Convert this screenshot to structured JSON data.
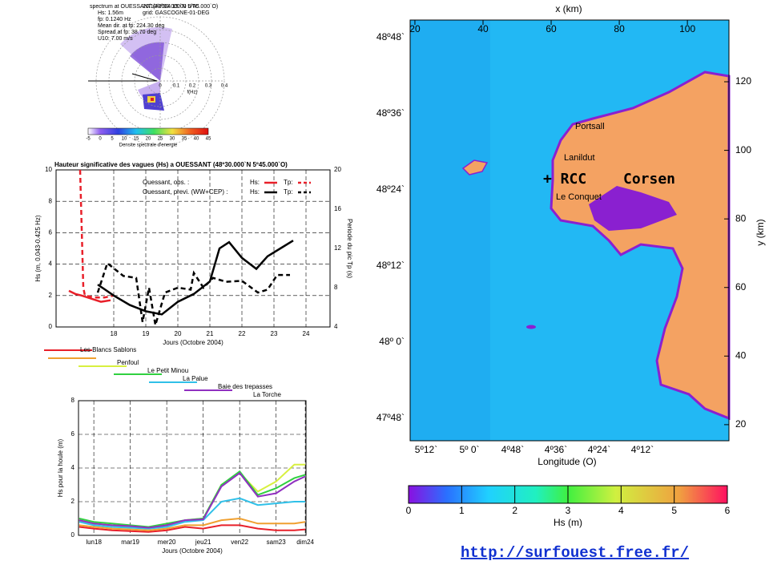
{
  "spectrum": {
    "title": "spectrum at OUESSANT (48º30.000`N 5º45.000`O)",
    "lines": [
      "Hs: 1.56m",
      "20/10/2004 15:00 UTC",
      "fp: 0.1240 Hz",
      "grid: GASCOGNE-01-DEG",
      "Mean dir. at fp: 224.30 deg",
      "Spread at fp: 38.70 deg",
      "U10: 7.00 m/s"
    ],
    "freq_ticks": [
      0,
      0.1,
      0.2,
      0.3,
      0.4
    ],
    "freq_lim": [
      0,
      0.45
    ],
    "freq_label": "f(Hz)",
    "colorbar": {
      "label": "Densite spectrale d'energie",
      "lim": [
        -5,
        45
      ],
      "ticks": [
        -5,
        0,
        5,
        10,
        15,
        20,
        25,
        30,
        35,
        40,
        45
      ]
    }
  },
  "chart_data": [
    {
      "type": "line",
      "title": "Hauteur significative des vagues (Hs) a OUESSANT (48º30.000`N 5º45.000`O)",
      "xlabel": "Jours (Octobre 2004)",
      "ylabel": "Hs (m, 0.043-0.425 Hz)",
      "y2label": "Periode du pic Tp (s)",
      "xlim": [
        16.2,
        24.75
      ],
      "xticks": [
        18,
        19,
        20,
        21,
        22,
        23,
        24
      ],
      "ylim": [
        0,
        10
      ],
      "yticks": [
        0,
        2,
        4,
        6,
        8,
        10
      ],
      "y2lim": [
        4,
        20
      ],
      "y2ticks": [
        4,
        8,
        12,
        16,
        20
      ],
      "grid": true,
      "legend_groups": [
        "Ouessant, obs. :",
        "Ouessant, previ. (WW+CEP) :"
      ],
      "series": [
        {
          "name": "Hs:",
          "group": 0,
          "color": "#e8202a",
          "dash": false,
          "x": [
            16.6,
            16.8,
            17.0,
            17.3,
            17.6,
            17.9
          ],
          "values": [
            2.3,
            2.1,
            2.0,
            1.8,
            1.6,
            1.7
          ]
        },
        {
          "name": "Tp:",
          "group": 0,
          "color": "#e8202a",
          "dash": true,
          "axis": "y2",
          "x": [
            16.95,
            17.0,
            17.05,
            17.1,
            17.4,
            17.7,
            18.0
          ],
          "values": [
            20,
            14,
            8,
            7.2,
            7,
            7,
            7.2
          ]
        },
        {
          "name": "Hs:",
          "group": 1,
          "color": "#000000",
          "dash": false,
          "x": [
            17.5,
            18.0,
            18.5,
            19.0,
            19.5,
            20.0,
            20.5,
            21.0,
            21.3,
            21.6,
            22.0,
            22.45,
            22.8,
            23.2,
            23.6
          ],
          "values": [
            2.7,
            2.0,
            1.4,
            1.0,
            0.8,
            1.6,
            2.1,
            2.9,
            5.0,
            5.4,
            4.4,
            3.7,
            4.5,
            5.0,
            5.5
          ]
        },
        {
          "name": "Tp:",
          "group": 1,
          "color": "#000000",
          "dash": true,
          "axis": "y2",
          "x": [
            17.5,
            17.8,
            18.3,
            18.7,
            18.9,
            19.1,
            19.3,
            19.6,
            20.0,
            20.4,
            20.5,
            20.8,
            21.1,
            21.5,
            22.0,
            22.5,
            22.8,
            23.1,
            23.5
          ],
          "values": [
            7.5,
            10.5,
            9.2,
            9,
            4.5,
            8,
            4.2,
            7.5,
            8,
            7.8,
            9.5,
            8,
            9,
            8.6,
            8.7,
            7.5,
            7.8,
            9.3,
            9.3
          ]
        }
      ]
    },
    {
      "type": "line",
      "xlabel": "Jours (Octobre 2004)",
      "ylabel": "Hs pour la houle (m)",
      "xlim": [
        17.58,
        23.82
      ],
      "xticks": [
        {
          "value": 18,
          "label": "lun18"
        },
        {
          "value": 19,
          "label": "mar19"
        },
        {
          "value": 20,
          "label": "mer20"
        },
        {
          "value": 21,
          "label": "jeu21"
        },
        {
          "value": 22,
          "label": "ven22"
        },
        {
          "value": 23,
          "label": "sam23"
        },
        {
          "value": 23.8,
          "label": "dim24"
        }
      ],
      "ylim": [
        0,
        8
      ],
      "yticks": [
        0,
        2,
        4,
        6,
        8
      ],
      "grid": true,
      "x": [
        17.6,
        18.0,
        18.5,
        19.0,
        19.5,
        20.0,
        20.5,
        21.0,
        21.5,
        22.0,
        22.5,
        23.0,
        23.5,
        23.8
      ],
      "series": [
        {
          "name": "Les Blancs Sablons",
          "color": "#e8202a",
          "values": [
            0.5,
            0.4,
            0.3,
            0.25,
            0.2,
            0.3,
            0.5,
            0.4,
            0.6,
            0.6,
            0.4,
            0.3,
            0.3,
            0.35
          ]
        },
        {
          "name": "Penfoul",
          "color": "#f0a030",
          "values": [
            0.6,
            0.5,
            0.4,
            0.35,
            0.3,
            0.4,
            0.6,
            0.6,
            0.9,
            1.0,
            0.7,
            0.7,
            0.7,
            0.8
          ]
        },
        {
          "name": "Le Petit Minou",
          "color": "#d8f040",
          "values": [
            0.9,
            0.7,
            0.6,
            0.5,
            0.4,
            0.6,
            0.9,
            1.0,
            3.0,
            3.7,
            2.6,
            3.2,
            4.2,
            4.2
          ]
        },
        {
          "name": "La Palue",
          "color": "#30d040",
          "values": [
            1.0,
            0.8,
            0.7,
            0.6,
            0.5,
            0.7,
            0.9,
            1.0,
            3.0,
            3.8,
            2.4,
            2.8,
            3.4,
            3.6
          ]
        },
        {
          "name": "Baie des trepasses",
          "color": "#30c0e8",
          "values": [
            0.8,
            0.6,
            0.5,
            0.45,
            0.4,
            0.5,
            0.8,
            0.9,
            2.0,
            2.2,
            1.8,
            1.9,
            2.0,
            2.0
          ]
        },
        {
          "name": "La Torche",
          "color": "#9030c0",
          "values": [
            0.9,
            0.7,
            0.6,
            0.55,
            0.45,
            0.6,
            0.9,
            0.95,
            2.9,
            3.7,
            2.3,
            2.5,
            3.2,
            3.5
          ]
        }
      ]
    }
  ],
  "map": {
    "x_label": "x (km)",
    "x_lim": [
      18.6,
      112.2
    ],
    "x_ticks": [
      20,
      40,
      60,
      80,
      100
    ],
    "y_label": "y (km)",
    "y_lim": [
      15.3,
      138
    ],
    "y_ticks": [
      20,
      40,
      60,
      80,
      100,
      120
    ],
    "lat_labels": [
      "48º48`",
      "48º36`",
      "48º24`",
      "48º12`",
      "48º 0`",
      "47º48`"
    ],
    "lon_labels": [
      "5º12`",
      "5º 0`",
      "4º48`",
      "4º36`",
      "4º24`",
      "4º12`"
    ],
    "lon_title": "Longitude (O)",
    "places": [
      "Portsall",
      "Lanildut",
      "Le Conquet"
    ],
    "rcc": "+ RCC",
    "corsen": "Corsen",
    "colorbar": {
      "label": "Hs (m)",
      "lim": [
        0,
        6
      ],
      "ticks": [
        0,
        1,
        2,
        3,
        4,
        5,
        6
      ]
    }
  },
  "url": "http://surfouest.free.fr/"
}
